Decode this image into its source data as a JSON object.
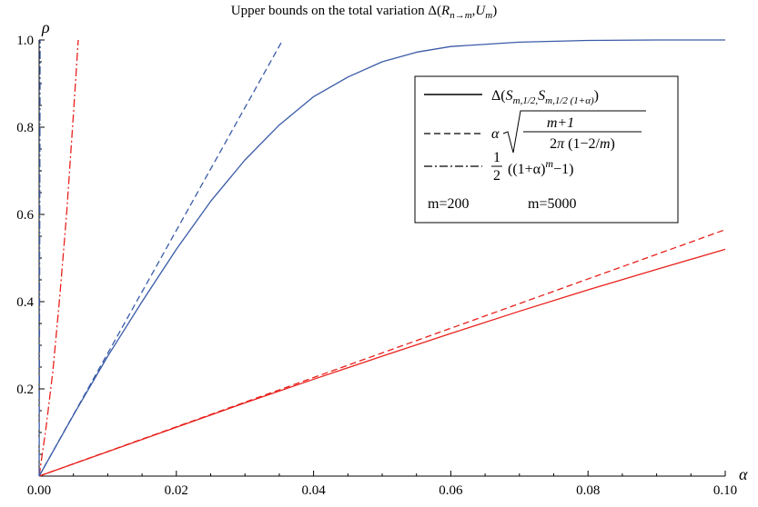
{
  "chart_data": {
    "type": "line",
    "title": "Upper bounds on the total variation Δ(R_{n→m}, U_m)",
    "xlabel": "α",
    "ylabel": "ρ",
    "xlim": [
      0,
      0.1
    ],
    "ylim": [
      0,
      1.0
    ],
    "x_ticks": [
      "0.00",
      "0.02",
      "0.04",
      "0.06",
      "0.08",
      "0.10"
    ],
    "y_ticks": [
      "0.2",
      "0.4",
      "0.6",
      "0.8",
      "1.0"
    ],
    "grid": false,
    "legend_position": "top-right",
    "legend": {
      "solid": "Δ(S_{m,1/2}, S_{m,1/2 (1+α)})",
      "dashed": "α √((m+1) / (2π (1−2/m)))",
      "dashdot": "1/2 ((1+α)^m − 1)",
      "m200": "m=200",
      "m5000": "m=5000"
    },
    "colors": {
      "m200": "#e8201b",
      "m5000": "#3a5ba8"
    },
    "series": [
      {
        "m": 200,
        "style": "solid",
        "x": [
          0,
          0.01,
          0.02,
          0.03,
          0.04,
          0.05,
          0.06,
          0.07,
          0.08,
          0.09,
          0.1
        ],
        "y": [
          0,
          0.056,
          0.112,
          0.168,
          0.222,
          0.275,
          0.327,
          0.378,
          0.427,
          0.474,
          0.52
        ]
      },
      {
        "m": 200,
        "style": "dashed",
        "x": [
          0,
          0.1
        ],
        "y": [
          0,
          0.565
        ]
      },
      {
        "m": 200,
        "style": "dashdot",
        "x": [
          0,
          0.001,
          0.002,
          0.003,
          0.004,
          0.005,
          0.0057
        ],
        "y": [
          0,
          0.11,
          0.24,
          0.41,
          0.6,
          0.83,
          1.0
        ]
      },
      {
        "m": 5000,
        "style": "solid",
        "x": [
          0,
          0.005,
          0.01,
          0.015,
          0.02,
          0.025,
          0.03,
          0.035,
          0.04,
          0.045,
          0.05,
          0.055,
          0.06,
          0.07,
          0.08,
          0.09,
          0.1
        ],
        "y": [
          0,
          0.14,
          0.275,
          0.4,
          0.52,
          0.63,
          0.725,
          0.805,
          0.87,
          0.915,
          0.95,
          0.972,
          0.985,
          0.995,
          0.999,
          1.0,
          1.0
        ]
      },
      {
        "m": 5000,
        "style": "dashed",
        "x": [
          0,
          0.0355
        ],
        "y": [
          0,
          1.0
        ]
      },
      {
        "m": 5000,
        "style": "dashdot",
        "x": [
          0,
          5e-05,
          0.0001,
          0.00014
        ],
        "y": [
          0,
          0.28,
          0.65,
          1.0
        ]
      }
    ]
  }
}
